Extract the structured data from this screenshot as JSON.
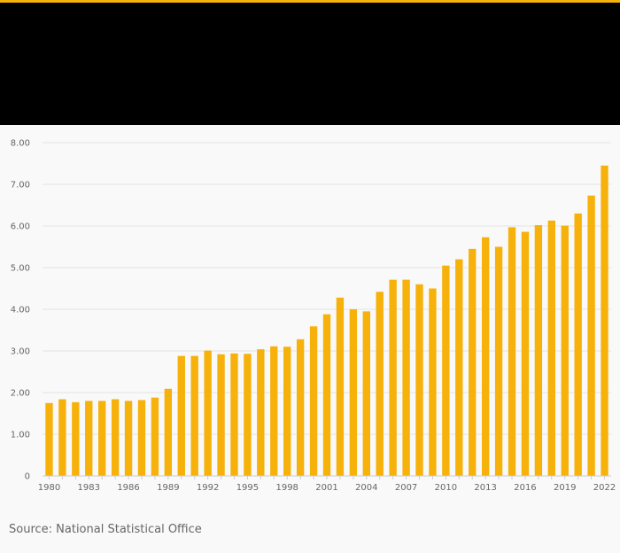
{
  "header": {
    "accent_color": "#f6b10a",
    "band_color": "#000000"
  },
  "chart_data": {
    "type": "bar",
    "title": "",
    "xlabel": "",
    "ylabel": "",
    "categories": [
      "1980",
      "1981",
      "1982",
      "1983",
      "1984",
      "1985",
      "1986",
      "1987",
      "1988",
      "1989",
      "1990",
      "1991",
      "1992",
      "1993",
      "1994",
      "1995",
      "1996",
      "1997",
      "1998",
      "1999",
      "2000",
      "2001",
      "2002",
      "2003",
      "2004",
      "2005",
      "2006",
      "2007",
      "2008",
      "2009",
      "2010",
      "2011",
      "2012",
      "2013",
      "2014",
      "2015",
      "2016",
      "2017",
      "2018",
      "2019",
      "2020",
      "2021",
      "2022"
    ],
    "values": [
      1.75,
      1.84,
      1.77,
      1.8,
      1.8,
      1.84,
      1.8,
      1.82,
      1.88,
      2.09,
      2.88,
      2.88,
      3.01,
      2.92,
      2.94,
      2.93,
      3.04,
      3.11,
      3.1,
      3.28,
      3.59,
      3.88,
      4.28,
      4.0,
      3.95,
      4.42,
      4.71,
      4.71,
      4.6,
      4.5,
      5.05,
      5.2,
      5.45,
      5.73,
      5.5,
      5.97,
      5.86,
      6.02,
      6.13,
      6.01,
      6.3,
      6.73,
      7.45
    ],
    "x_tick_labels": [
      "1980",
      "1983",
      "1986",
      "1989",
      "1992",
      "1995",
      "1998",
      "2001",
      "2004",
      "2007",
      "2010",
      "2013",
      "2016",
      "2019",
      "2022"
    ],
    "y_tick_labels": [
      "0",
      "1.00",
      "2.00",
      "3.00",
      "4.00",
      "5.00",
      "6.00",
      "7.00",
      "8.00"
    ],
    "ylim": [
      0,
      8
    ],
    "grid": true,
    "bar_color": "#f6b10a"
  },
  "footer": {
    "source": "Source: National Statistical Office"
  }
}
